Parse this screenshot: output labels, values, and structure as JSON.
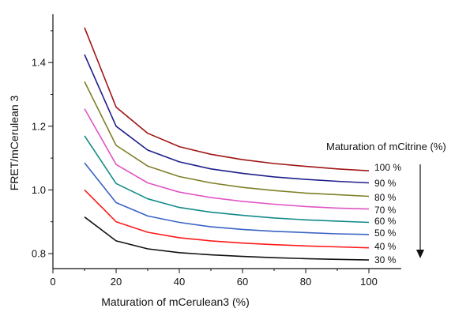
{
  "chart_data": {
    "type": "line",
    "title": "",
    "xlabel": "Maturation of mCerulean3 (%)",
    "ylabel": "FRET/mCerulean 3",
    "xlim": [
      0,
      105
    ],
    "ylim": [
      0.75,
      1.55
    ],
    "xticks": [
      0,
      20,
      40,
      60,
      80,
      100
    ],
    "yticks": [
      0.8,
      1.0,
      1.2,
      1.4
    ],
    "ytick_labels": [
      "0.8",
      "1.0",
      "1.2",
      "1.4"
    ],
    "grid": false,
    "x": [
      10,
      20,
      30,
      40,
      50,
      60,
      70,
      80,
      90,
      100
    ],
    "series": [
      {
        "name": "100 %",
        "color": "#a01414",
        "values": [
          1.51,
          1.26,
          1.178,
          1.136,
          1.112,
          1.095,
          1.083,
          1.074,
          1.066,
          1.06
        ]
      },
      {
        "name": "90 %",
        "color": "#1e1e8c",
        "values": [
          1.425,
          1.2,
          1.125,
          1.088,
          1.066,
          1.052,
          1.041,
          1.033,
          1.027,
          1.022
        ]
      },
      {
        "name": "80 %",
        "color": "#7f7f28",
        "values": [
          1.34,
          1.14,
          1.075,
          1.042,
          1.022,
          1.008,
          0.998,
          0.99,
          0.985,
          0.98
        ]
      },
      {
        "name": "70 %",
        "color": "#e055c4",
        "values": [
          1.255,
          1.08,
          1.022,
          0.993,
          0.976,
          0.964,
          0.955,
          0.948,
          0.943,
          0.94
        ]
      },
      {
        "name": "60 %",
        "color": "#128a8a",
        "values": [
          1.17,
          1.02,
          0.972,
          0.945,
          0.93,
          0.92,
          0.912,
          0.906,
          0.902,
          0.898
        ]
      },
      {
        "name": "50 %",
        "color": "#3a64c4",
        "values": [
          1.085,
          0.96,
          0.918,
          0.898,
          0.884,
          0.876,
          0.87,
          0.866,
          0.862,
          0.86
        ]
      },
      {
        "name": "40 %",
        "color": "#ff1a1a",
        "values": [
          1.0,
          0.9,
          0.867,
          0.85,
          0.84,
          0.833,
          0.828,
          0.824,
          0.821,
          0.818
        ]
      },
      {
        "name": "30 %",
        "color": "#111111",
        "values": [
          0.915,
          0.84,
          0.815,
          0.803,
          0.796,
          0.791,
          0.787,
          0.784,
          0.782,
          0.78
        ]
      }
    ],
    "legend_title": "Maturation of mCitrine (%)",
    "legend_placement": "right"
  }
}
